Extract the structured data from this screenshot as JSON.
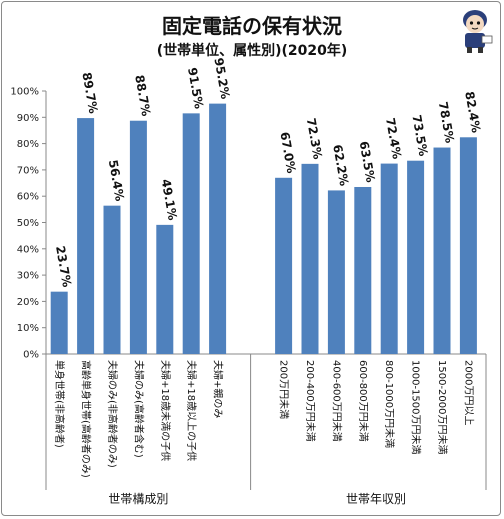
{
  "chart_data": {
    "type": "bar",
    "title": "固定電話の保有状況",
    "subtitle": "(世帯単位、属性別)(2020年)",
    "ylim": [
      0,
      100
    ],
    "yticks": [
      "0%",
      "10%",
      "20%",
      "30%",
      "40%",
      "50%",
      "60%",
      "70%",
      "80%",
      "90%",
      "100%"
    ],
    "grid": false,
    "bar_color": "#4f81bd",
    "groups": [
      {
        "label": "世帯構成別",
        "categories": [
          "単身世帯(非高齢者)",
          "高齢単身世帯(高齢者のみ)",
          "夫婦のみ(非高齢者のみ)",
          "夫婦のみ(高齢者含む)",
          "夫婦+18歳未満の子供",
          "夫婦+18歳以上の子供",
          "夫婦+親のみ"
        ],
        "values": [
          23.7,
          89.7,
          56.4,
          88.7,
          49.1,
          91.5,
          95.2
        ],
        "labels": [
          "23.7%",
          "89.7%",
          "56.4%",
          "88.7%",
          "49.1%",
          "91.5%",
          "95.2%"
        ]
      },
      {
        "label": "世帯年収別",
        "categories": [
          "200万円未満",
          "200-400万円未満",
          "400-600万円未満",
          "600-800万円未満",
          "800-1000万円未満",
          "1000-1500万円未満",
          "1500-2000万円未満",
          "2000万円以上"
        ],
        "values": [
          67.0,
          72.3,
          62.2,
          63.5,
          72.4,
          73.5,
          78.5,
          82.4
        ],
        "labels": [
          "67.0%",
          "72.3%",
          "62.2%",
          "63.5%",
          "72.4%",
          "73.5%",
          "78.5%",
          "82.4%"
        ]
      }
    ]
  }
}
